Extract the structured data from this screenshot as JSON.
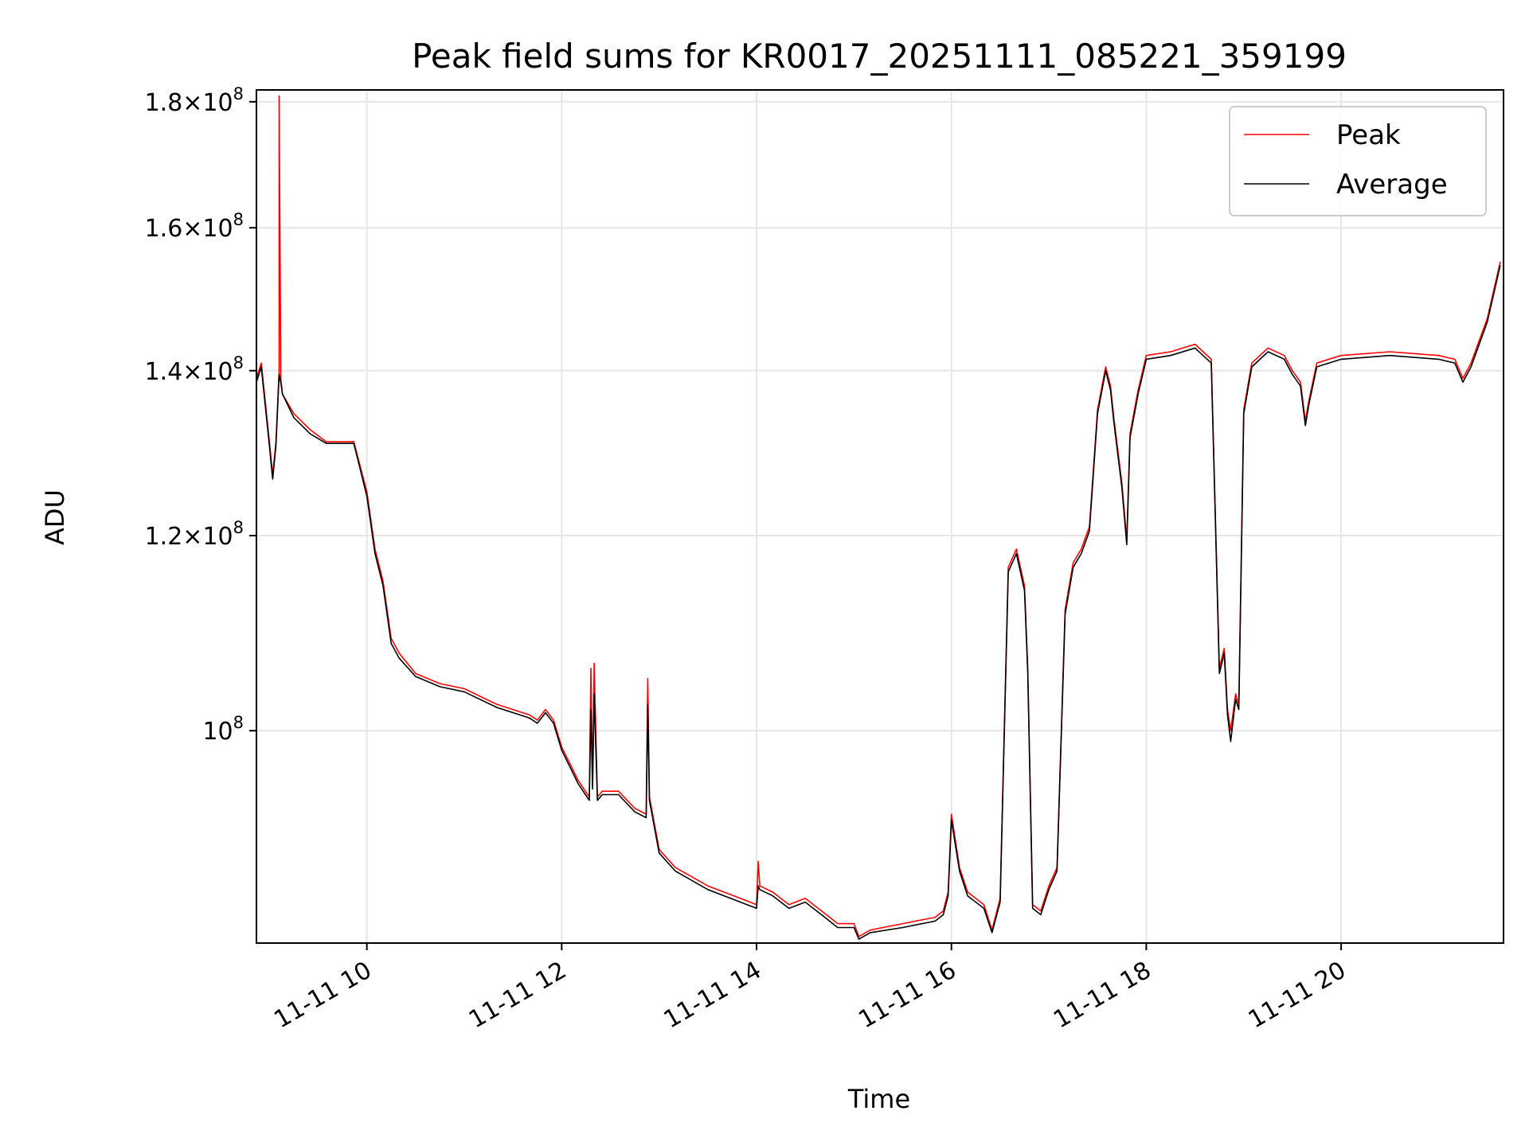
{
  "chart_data": {
    "type": "line",
    "title": "Peak field sums for KR0017_20251111_085221_359199",
    "xlabel": "Time",
    "ylabel": "ADU",
    "x_type": "time",
    "xlim": [
      "2025-11-11 08:52",
      "2025-11-11 21:40"
    ],
    "ylim": [
      82000000,
      182000000
    ],
    "y_scale": "log",
    "y_ticks": [
      {
        "value": 100000000,
        "mant": "",
        "exp": "8"
      },
      {
        "value": 120000000,
        "mant": "1.2",
        "exp": "8"
      },
      {
        "value": 140000000,
        "mant": "1.4",
        "exp": "8"
      },
      {
        "value": 160000000,
        "mant": "1.6",
        "exp": "8"
      },
      {
        "value": 180000000,
        "mant": "1.8",
        "exp": "8"
      }
    ],
    "x_ticks": [
      {
        "value": "2025-11-11 10:00",
        "label": "11-11 10"
      },
      {
        "value": "2025-11-11 12:00",
        "label": "11-11 12"
      },
      {
        "value": "2025-11-11 14:00",
        "label": "11-11 14"
      },
      {
        "value": "2025-11-11 16:00",
        "label": "11-11 16"
      },
      {
        "value": "2025-11-11 18:00",
        "label": "11-11 18"
      },
      {
        "value": "2025-11-11 20:00",
        "label": "11-11 20"
      }
    ],
    "grid": true,
    "legend_position": "top-right",
    "series": [
      {
        "name": "Peak",
        "color": "#ff0000",
        "x": [
          "08:52",
          "08:55",
          "09:00",
          "09:02",
          "09:04",
          "09:06",
          "09:06",
          "09:07",
          "09:08",
          "09:15",
          "09:25",
          "09:35",
          "09:45",
          "09:52",
          "10:00",
          "10:05",
          "10:10",
          "10:15",
          "10:20",
          "10:30",
          "10:45",
          "11:00",
          "11:20",
          "11:40",
          "11:45",
          "11:50",
          "11:55",
          "12:00",
          "12:05",
          "12:10",
          "12:17",
          "12:18",
          "12:19",
          "12:20",
          "12:22",
          "12:25",
          "12:35",
          "12:45",
          "12:52",
          "12:53",
          "12:54",
          "12:56",
          "13:00",
          "13:10",
          "13:30",
          "13:50",
          "14:00",
          "14:01",
          "14:02",
          "14:10",
          "14:20",
          "14:30",
          "14:40",
          "14:50",
          "15:00",
          "15:03",
          "15:10",
          "15:30",
          "15:50",
          "15:55",
          "15:58",
          "16:00",
          "16:05",
          "16:10",
          "16:20",
          "16:25",
          "16:30",
          "16:35",
          "16:40",
          "16:45",
          "16:47",
          "16:50",
          "16:55",
          "17:00",
          "17:05",
          "17:10",
          "17:15",
          "17:20",
          "17:25",
          "17:30",
          "17:35",
          "17:38",
          "17:40",
          "17:45",
          "17:48",
          "17:50",
          "17:55",
          "18:00",
          "18:15",
          "18:30",
          "18:40",
          "18:45",
          "18:48",
          "18:50",
          "18:52",
          "18:55",
          "18:57",
          "19:00",
          "19:05",
          "19:15",
          "19:25",
          "19:30",
          "19:35",
          "19:38",
          "19:40",
          "19:45",
          "20:00",
          "20:30",
          "21:00",
          "21:10",
          "21:15",
          "21:20",
          "21:30",
          "21:38"
        ],
        "y": [
          139000000,
          141000000,
          131000000,
          127000000,
          131000000,
          140000000,
          181000000,
          139000000,
          137000000,
          134500000,
          132500000,
          131000000,
          131000000,
          131000000,
          125000000,
          118500000,
          115000000,
          109000000,
          107500000,
          105500000,
          104500000,
          104000000,
          102500000,
          101500000,
          101000000,
          102000000,
          101000000,
          98500000,
          97000000,
          95500000,
          94000000,
          106000000,
          95000000,
          106500000,
          94000000,
          94500000,
          94500000,
          93000000,
          92500000,
          105000000,
          94000000,
          92500000,
          89500000,
          88000000,
          86500000,
          85500000,
          85000000,
          88500000,
          86500000,
          86000000,
          85000000,
          85500000,
          84500000,
          83500000,
          83500000,
          82500000,
          83000000,
          83500000,
          84000000,
          84500000,
          86000000,
          92500000,
          88000000,
          86000000,
          85000000,
          83000000,
          85500000,
          116500000,
          118500000,
          114500000,
          106000000,
          85000000,
          84500000,
          86500000,
          88000000,
          112000000,
          117000000,
          118500000,
          121000000,
          135000000,
          140500000,
          138000000,
          134000000,
          126000000,
          119500000,
          132000000,
          137500000,
          142000000,
          142500000,
          143500000,
          141500000,
          106000000,
          108000000,
          102000000,
          100000000,
          103500000,
          102500000,
          135000000,
          141000000,
          143000000,
          142000000,
          140000000,
          138500000,
          133500000,
          136000000,
          141000000,
          142000000,
          142500000,
          142000000,
          141500000,
          139000000,
          141000000,
          147000000,
          155000000
        ]
      },
      {
        "name": "Average",
        "color": "#000000",
        "x": [
          "08:52",
          "08:55",
          "09:00",
          "09:02",
          "09:04",
          "09:06",
          "09:07",
          "09:08",
          "09:15",
          "09:25",
          "09:35",
          "09:45",
          "09:52",
          "10:00",
          "10:05",
          "10:10",
          "10:15",
          "10:20",
          "10:30",
          "10:45",
          "11:00",
          "11:20",
          "11:40",
          "11:45",
          "11:50",
          "11:55",
          "12:00",
          "12:05",
          "12:10",
          "12:17",
          "12:18",
          "12:19",
          "12:20",
          "12:22",
          "12:25",
          "12:35",
          "12:45",
          "12:52",
          "12:53",
          "12:54",
          "12:56",
          "13:00",
          "13:10",
          "13:30",
          "13:50",
          "14:00",
          "14:01",
          "14:02",
          "14:10",
          "14:20",
          "14:30",
          "14:40",
          "14:50",
          "15:00",
          "15:03",
          "15:10",
          "15:30",
          "15:50",
          "15:55",
          "15:58",
          "16:00",
          "16:05",
          "16:10",
          "16:20",
          "16:25",
          "16:30",
          "16:35",
          "16:40",
          "16:45",
          "16:47",
          "16:50",
          "16:55",
          "17:00",
          "17:05",
          "17:10",
          "17:15",
          "17:20",
          "17:25",
          "17:30",
          "17:35",
          "17:38",
          "17:40",
          "17:45",
          "17:48",
          "17:50",
          "17:55",
          "18:00",
          "18:15",
          "18:30",
          "18:40",
          "18:45",
          "18:48",
          "18:50",
          "18:52",
          "18:55",
          "18:57",
          "19:00",
          "19:05",
          "19:15",
          "19:25",
          "19:30",
          "19:35",
          "19:38",
          "19:40",
          "19:45",
          "20:00",
          "20:30",
          "21:00",
          "21:10",
          "21:15",
          "21:20",
          "21:30",
          "21:38"
        ],
        "y": [
          138500000,
          140500000,
          130500000,
          126500000,
          130500000,
          139500000,
          138500000,
          137000000,
          134000000,
          132000000,
          130800000,
          130800000,
          130800000,
          124500000,
          118000000,
          114500000,
          108500000,
          107000000,
          105200000,
          104200000,
          103700000,
          102200000,
          101200000,
          100700000,
          101700000,
          100700000,
          98200000,
          96700000,
          95200000,
          93700000,
          102000000,
          94700000,
          103500000,
          93700000,
          94200000,
          94200000,
          92700000,
          92200000,
          102500000,
          93700000,
          92200000,
          89200000,
          87700000,
          86200000,
          85200000,
          84700000,
          86500000,
          86200000,
          85700000,
          84700000,
          85200000,
          84200000,
          83200000,
          83200000,
          82300000,
          82800000,
          83200000,
          83700000,
          84200000,
          85700000,
          92000000,
          87700000,
          85700000,
          84700000,
          82800000,
          85200000,
          116000000,
          118000000,
          114000000,
          105500000,
          84700000,
          84200000,
          86200000,
          87700000,
          111500000,
          116500000,
          118000000,
          120500000,
          134500000,
          140000000,
          137500000,
          133500000,
          125500000,
          119000000,
          131500000,
          137000000,
          141500000,
          142000000,
          143000000,
          141000000,
          105500000,
          107500000,
          101500000,
          99000000,
          103000000,
          102000000,
          134500000,
          140500000,
          142500000,
          141500000,
          139500000,
          138000000,
          133000000,
          135500000,
          140500000,
          141500000,
          142000000,
          141500000,
          141000000,
          138500000,
          140500000,
          146500000,
          154500000
        ]
      }
    ]
  }
}
